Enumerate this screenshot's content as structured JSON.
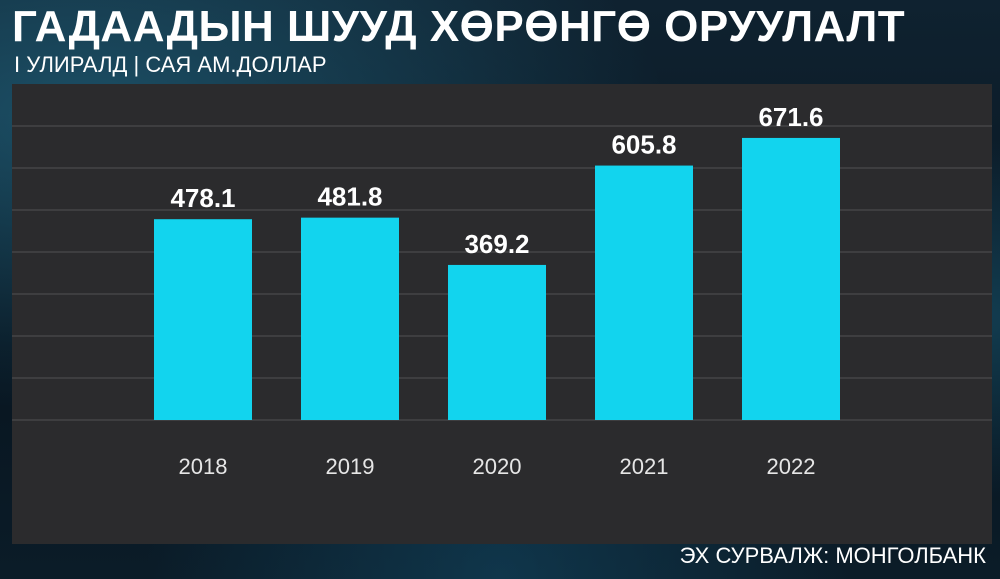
{
  "header": {
    "title": "ГАДААДЫН ШУУД ХӨРӨНГӨ ОРУУЛАЛТ",
    "subtitle": "I УЛИРАЛД | САЯ АМ.ДОЛЛАР"
  },
  "footer": {
    "source": "ЭХ СУРВАЛЖ: МОНГОЛБАНК"
  },
  "colors": {
    "bar": "#12d4ee",
    "panel": "#2b2b2d",
    "grid": "#444446",
    "text": "#ffffff",
    "tick_text": "#e6e6e6"
  },
  "chart_data": {
    "type": "bar",
    "categories": [
      "2018",
      "2019",
      "2020",
      "2021",
      "2022"
    ],
    "values": [
      478.1,
      481.8,
      369.2,
      605.8,
      671.6
    ],
    "value_labels": [
      "478.1",
      "481.8",
      "369.2",
      "605.8",
      "671.6"
    ],
    "ylim": [
      0,
      800
    ],
    "grid": true,
    "legend": "none"
  }
}
